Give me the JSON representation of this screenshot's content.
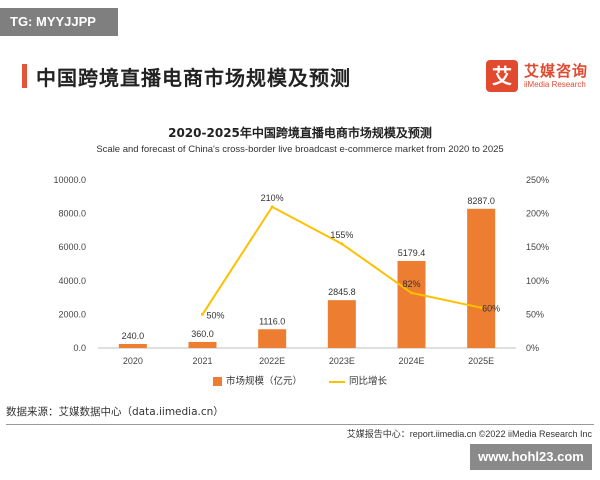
{
  "watermark_top": "TG: MYYJJPP",
  "page_title": "中国跨境直播电商市场规模及预测",
  "logo": {
    "icon_char": "艾",
    "name_cn": "艾媒咨询",
    "name_en": "iiMedia Research"
  },
  "source": "数据来源：艾媒数据中心（data.iimedia.cn）",
  "footer": "艾媒报告中心：report.iimedia.cn   ©2022  iiMedia Research  Inc",
  "watermark_bottom": "www.hohl23.com",
  "colors": {
    "bar": "#ed7d31",
    "line": "#ffc000",
    "accent": "#e24a30"
  },
  "chart_data": {
    "type": "bar",
    "title": "2020-2025年中国跨境直播电商市场规模及预测",
    "subtitle": "Scale and forecast of China's cross-border live broadcast e-commerce market from 2020 to 2025",
    "categories": [
      "2020",
      "2021",
      "2022E",
      "2023E",
      "2024E",
      "2025E"
    ],
    "y_left": {
      "ylim": [
        0,
        10000
      ],
      "ticks": [
        "0.0",
        "2000.0",
        "4000.0",
        "6000.0",
        "8000.0",
        "10000.0"
      ]
    },
    "y_right": {
      "ylim": [
        0,
        250
      ],
      "ticks": [
        "0%",
        "50%",
        "100%",
        "150%",
        "200%",
        "250%"
      ]
    },
    "series": [
      {
        "name": "市场规模（亿元）",
        "kind": "bar",
        "axis": "left",
        "values": [
          240.0,
          360.0,
          1116.0,
          2845.8,
          5179.4,
          8287.0
        ],
        "labels": [
          "240.0",
          "360.0",
          "1116.0",
          "2845.8",
          "5179.4",
          "8287.0"
        ]
      },
      {
        "name": "同比增长",
        "kind": "line",
        "axis": "right",
        "values": [
          null,
          50,
          210,
          155,
          82,
          60
        ],
        "labels": [
          "",
          "50%",
          "210%",
          "155%",
          "82%",
          "60%"
        ]
      }
    ],
    "legend_position": "bottom",
    "grid": false
  }
}
